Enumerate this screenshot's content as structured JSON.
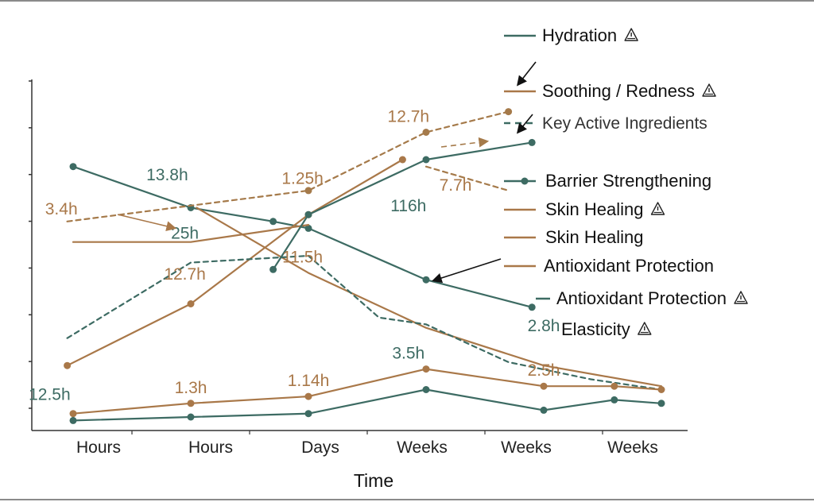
{
  "colors": {
    "teal": "#3d6b63",
    "brown": "#a97849",
    "dashed_brown": "#a57a4a",
    "axis": "#333333"
  },
  "chart_data": {
    "type": "line",
    "xlabel": "Time",
    "categories": [
      "Hours",
      "Hours",
      "Days",
      "Weeks",
      "Weeks",
      "Weeks"
    ],
    "y_ticks": 8,
    "ylim": [
      0,
      100
    ],
    "grid": false,
    "legend_position": "right",
    "legend": [
      {
        "label": "Hydration",
        "warning_icon": true,
        "color": "#3d6b63",
        "style": "solid",
        "marker": false
      },
      {
        "label": "Soothing / Redness",
        "warning_icon": true,
        "color": "#a97849",
        "style": "solid",
        "marker": false
      },
      {
        "label": "Key Active Ingredients",
        "warning_icon": false,
        "color": "#3d6b63",
        "style": "dashed",
        "marker": false
      },
      {
        "label": "Barrier Strengthening",
        "warning_icon": false,
        "color": "#3d6b63",
        "style": "solid",
        "marker": true
      },
      {
        "label": "Skin Healing",
        "warning_icon": true,
        "color": "#a97849",
        "style": "solid",
        "marker": false
      },
      {
        "label": "Skin Healing",
        "warning_icon": false,
        "color": "#a97849",
        "style": "solid",
        "marker": false
      },
      {
        "label": "Antioxidant Protection",
        "warning_icon": false,
        "color": "#a97849",
        "style": "solid",
        "marker": false
      },
      {
        "label": "Antioxidant Protection",
        "warning_icon": true,
        "color": "#3d6b63",
        "style": "solid",
        "marker": false
      },
      {
        "label": "Elasticity",
        "warning_icon": true,
        "color": "",
        "style": "none",
        "marker": false
      }
    ],
    "series": [
      {
        "color": "#3d6b63",
        "style": "solid",
        "markers": true,
        "x": [
          0,
          1,
          1.7,
          2,
          3,
          3.9
        ],
        "y": [
          76,
          64,
          60,
          58,
          43,
          35
        ]
      },
      {
        "color": "#a97849",
        "style": "solid",
        "markers": false,
        "x": [
          1.05,
          2,
          3,
          4,
          5
        ],
        "y": [
          64,
          45,
          29,
          18,
          12
        ]
      },
      {
        "color": "#a97849",
        "style": "solid",
        "markers": false,
        "x": [
          0,
          1,
          2
        ],
        "y": [
          54,
          54,
          59
        ]
      },
      {
        "color": "#a97849",
        "style": "solid",
        "markers": true,
        "x": [
          -0.05,
          1,
          2,
          2.8
        ],
        "y": [
          18,
          36,
          62,
          78
        ]
      },
      {
        "color": "#3d6b63",
        "style": "solid",
        "markers": true,
        "x": [
          1.7,
          2,
          3,
          3.9
        ],
        "y": [
          46,
          62,
          78,
          83
        ]
      },
      {
        "color": "#a57a4a",
        "style": "dashed",
        "markers": true,
        "x": [
          -0.05,
          2,
          3,
          3.7
        ],
        "y": [
          60,
          69,
          86,
          92
        ]
      },
      {
        "color": "#a57a4a",
        "style": "dashed",
        "markers": false,
        "x": [
          3,
          3.7
        ],
        "y": [
          76,
          69
        ]
      },
      {
        "color": "#3d6b63",
        "style": "dashed",
        "markers": false,
        "x": [
          -0.05,
          1,
          2,
          2.6,
          3,
          3.7,
          4.4,
          5
        ],
        "y": [
          26,
          48,
          50,
          32,
          30,
          19,
          14,
          11
        ]
      },
      {
        "color": "#a97849",
        "style": "solid",
        "markers": true,
        "x": [
          0,
          1,
          2,
          3,
          4,
          4.6,
          5
        ],
        "y": [
          4,
          7,
          9,
          17,
          12,
          12,
          11
        ]
      },
      {
        "color": "#3d6b63",
        "style": "solid",
        "markers": true,
        "x": [
          0,
          1,
          2,
          3,
          4,
          4.6,
          5
        ],
        "y": [
          2,
          3,
          4,
          11,
          5,
          8,
          7
        ]
      }
    ],
    "data_labels": [
      {
        "text": "12.5h",
        "x": -0.2,
        "y": 8,
        "color": "#3d6b63"
      },
      {
        "text": "1.3h",
        "x": 1.0,
        "y": 10,
        "color": "#a97849"
      },
      {
        "text": "1.14h",
        "x": 2.0,
        "y": 12,
        "color": "#a97849"
      },
      {
        "text": "3.5h",
        "x": 2.85,
        "y": 20,
        "color": "#3d6b63"
      },
      {
        "text": "2.5h",
        "x": 4.0,
        "y": 15,
        "color": "#a97849"
      },
      {
        "text": "2.8h",
        "x": 4.0,
        "y": 28,
        "color": "#3d6b63"
      },
      {
        "text": "3.4h",
        "x": -0.1,
        "y": 62,
        "color": "#a97849"
      },
      {
        "text": "13.8h",
        "x": 0.8,
        "y": 72,
        "color": "#3d6b63"
      },
      {
        "text": "25h",
        "x": 0.95,
        "y": 55,
        "color": "#3d6b63"
      },
      {
        "text": "12.7h",
        "x": 0.95,
        "y": 43,
        "color": "#a97849"
      },
      {
        "text": "1.25h",
        "x": 1.95,
        "y": 71,
        "color": "#a97849"
      },
      {
        "text": "11.5h",
        "x": 1.95,
        "y": 48,
        "color": "#a97849"
      },
      {
        "text": "116h",
        "x": 2.85,
        "y": 63,
        "color": "#3d6b63"
      },
      {
        "text": "7.7h",
        "x": 3.25,
        "y": 69,
        "color": "#a97849"
      },
      {
        "text": "12.7h",
        "x": 2.85,
        "y": 89,
        "color": "#a97849"
      }
    ]
  }
}
